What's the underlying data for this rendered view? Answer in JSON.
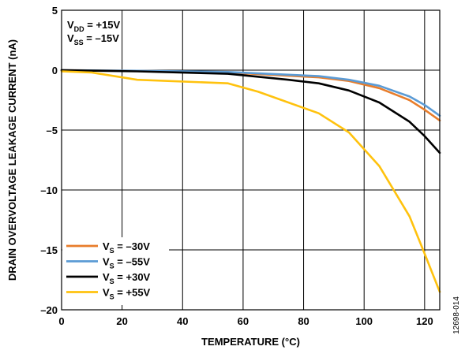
{
  "chart_data": {
    "type": "line",
    "title": "",
    "xlabel": "TEMPERATURE (°C)",
    "ylabel": "DRAIN OVERVOLTAGE LEAKAGE CURRENT (nA)",
    "xlim": [
      0,
      125
    ],
    "ylim": [
      -20,
      5
    ],
    "xticks": [
      0,
      20,
      40,
      60,
      80,
      100,
      120
    ],
    "yticks": [
      5,
      0,
      -5,
      -10,
      -15,
      -20
    ],
    "xtick_labels": [
      "0",
      "20",
      "40",
      "60",
      "80",
      "100",
      "120"
    ],
    "ytick_labels": [
      "5",
      "0",
      "–5",
      "–10",
      "–15",
      "–20"
    ],
    "grid": true,
    "legend_position": "bottom-left",
    "conditions": [
      {
        "main": "V",
        "sub": "DD",
        "rest": " = +15V"
      },
      {
        "main": "V",
        "sub": "SS",
        "rest": " = –15V"
      }
    ],
    "series": [
      {
        "name": "V_S = –30V",
        "label_main": "V",
        "label_sub": "S",
        "label_rest": " = –30V",
        "color": "#E87D2B",
        "x": [
          0,
          25,
          55,
          85,
          95,
          105,
          115,
          120,
          125
        ],
        "y": [
          0.0,
          -0.05,
          -0.2,
          -0.6,
          -0.9,
          -1.5,
          -2.5,
          -3.3,
          -4.2
        ]
      },
      {
        "name": "V_S = –55V",
        "label_main": "V",
        "label_sub": "S",
        "label_rest": " = –55V",
        "color": "#5B9BD5",
        "x": [
          0,
          25,
          55,
          85,
          95,
          105,
          115,
          120,
          125
        ],
        "y": [
          0.0,
          -0.05,
          -0.15,
          -0.5,
          -0.8,
          -1.3,
          -2.2,
          -2.9,
          -3.8
        ]
      },
      {
        "name": "V_S = +30V",
        "label_main": "V",
        "label_sub": "S",
        "label_rest": " = +30V",
        "color": "#000000",
        "x": [
          0,
          25,
          55,
          75,
          85,
          95,
          105,
          115,
          120,
          125
        ],
        "y": [
          0.0,
          -0.1,
          -0.3,
          -0.8,
          -1.1,
          -1.7,
          -2.7,
          -4.3,
          -5.5,
          -6.9
        ]
      },
      {
        "name": "V_S = +55V",
        "label_main": "V",
        "label_sub": "S",
        "label_rest": " = +55V",
        "color": "#FFC20E",
        "x": [
          0,
          10,
          25,
          55,
          65,
          85,
          95,
          105,
          115,
          120,
          125
        ],
        "y": [
          -0.1,
          -0.2,
          -0.8,
          -1.1,
          -1.8,
          -3.6,
          -5.2,
          -8.0,
          -12.2,
          -15.3,
          -18.5
        ]
      }
    ]
  },
  "figure_id": "12698-014"
}
